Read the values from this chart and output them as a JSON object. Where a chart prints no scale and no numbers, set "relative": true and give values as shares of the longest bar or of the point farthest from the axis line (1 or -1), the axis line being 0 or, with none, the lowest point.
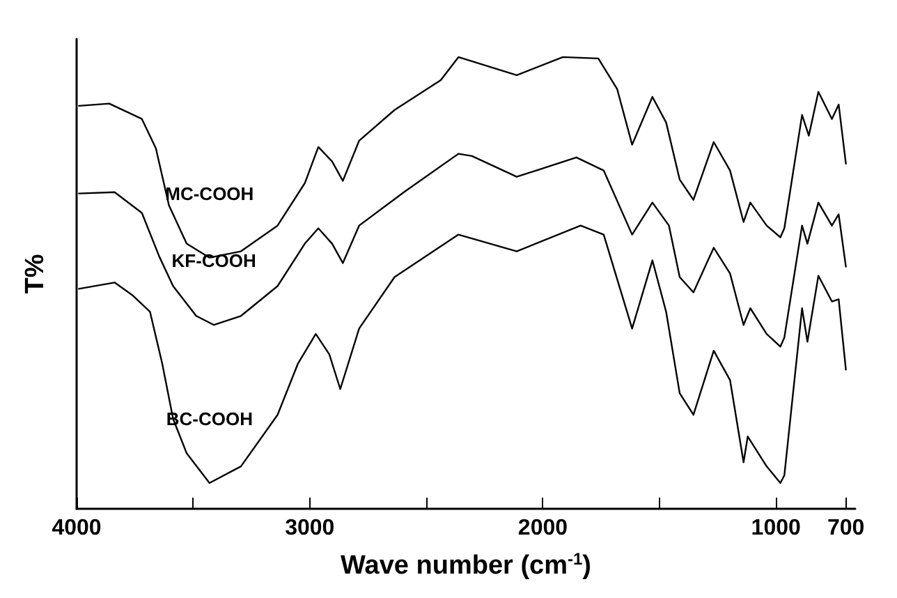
{
  "chart_data": {
    "type": "line",
    "relative": true,
    "xlabel": "Wave number (cm$^{-1}$)",
    "ylabel": "T%",
    "xlim": [
      4000,
      660
    ],
    "xticks": [
      4000,
      {
        "value": 3500,
        "label": null
      },
      3000,
      {
        "value": 2500,
        "label": null
      },
      2000,
      {
        "value": 1500,
        "label": null
      },
      1000,
      700
    ],
    "grid": false,
    "legend": false,
    "marker": "none",
    "line_style": "solid",
    "series": [
      {
        "name": "MC-COOH",
        "color": "#000000",
        "x": [
          3990,
          3860,
          3720,
          3660,
          3604,
          3528,
          3430,
          3295,
          3138,
          3021,
          2963,
          2904,
          2858,
          2788,
          2636,
          2438,
          2362,
          2112,
          1914,
          1762,
          1681,
          1617,
          1530,
          1471,
          1413,
          1354,
          1267,
          1197,
          1139,
          1110,
          1040,
          981,
          964,
          888,
          859,
          818,
          760,
          731,
          700
        ],
        "values": [
          0.892,
          0.897,
          0.863,
          0.798,
          0.672,
          0.587,
          0.556,
          0.57,
          0.627,
          0.721,
          0.801,
          0.769,
          0.726,
          0.815,
          0.883,
          0.949,
          1.0,
          0.96,
          1.0,
          0.997,
          0.929,
          0.806,
          0.912,
          0.855,
          0.729,
          0.684,
          0.812,
          0.749,
          0.635,
          0.678,
          0.627,
          0.601,
          0.621,
          0.872,
          0.826,
          0.923,
          0.863,
          0.895,
          0.764
        ]
      },
      {
        "name": "KF-COOH",
        "color": "#000000",
        "x": [
          3990,
          3837,
          3720,
          3645,
          3586,
          3487,
          3411,
          3295,
          3138,
          3021,
          2963,
          2904,
          2858,
          2788,
          2596,
          2362,
          2304,
          2112,
          1856,
          1739,
          1617,
          1530,
          1459,
          1413,
          1354,
          1267,
          1197,
          1139,
          1110,
          1040,
          981,
          964,
          888,
          865,
          818,
          760,
          731,
          700
        ],
        "values": [
          0.698,
          0.701,
          0.655,
          0.558,
          0.493,
          0.427,
          0.407,
          0.427,
          0.493,
          0.587,
          0.621,
          0.587,
          0.544,
          0.627,
          0.701,
          0.786,
          0.781,
          0.735,
          0.778,
          0.749,
          0.607,
          0.678,
          0.627,
          0.513,
          0.479,
          0.578,
          0.521,
          0.407,
          0.444,
          0.387,
          0.359,
          0.379,
          0.627,
          0.587,
          0.678,
          0.627,
          0.652,
          0.536
        ]
      },
      {
        "name": "BC-COOH",
        "color": "#000000",
        "x": [
          3990,
          3837,
          3761,
          3685,
          3633,
          3586,
          3528,
          3430,
          3295,
          3138,
          3050,
          2974,
          2916,
          2869,
          2788,
          2636,
          2362,
          2112,
          1838,
          1739,
          1617,
          1530,
          1471,
          1413,
          1354,
          1267,
          1197,
          1139,
          1121,
          1040,
          981,
          964,
          888,
          865,
          818,
          760,
          731,
          700
        ],
        "values": [
          0.487,
          0.501,
          0.473,
          0.436,
          0.322,
          0.199,
          0.123,
          0.057,
          0.094,
          0.208,
          0.322,
          0.387,
          0.342,
          0.265,
          0.399,
          0.513,
          0.607,
          0.57,
          0.627,
          0.607,
          0.399,
          0.55,
          0.436,
          0.256,
          0.208,
          0.35,
          0.285,
          0.103,
          0.16,
          0.094,
          0.057,
          0.074,
          0.444,
          0.37,
          0.516,
          0.459,
          0.464,
          0.308
        ]
      }
    ]
  }
}
